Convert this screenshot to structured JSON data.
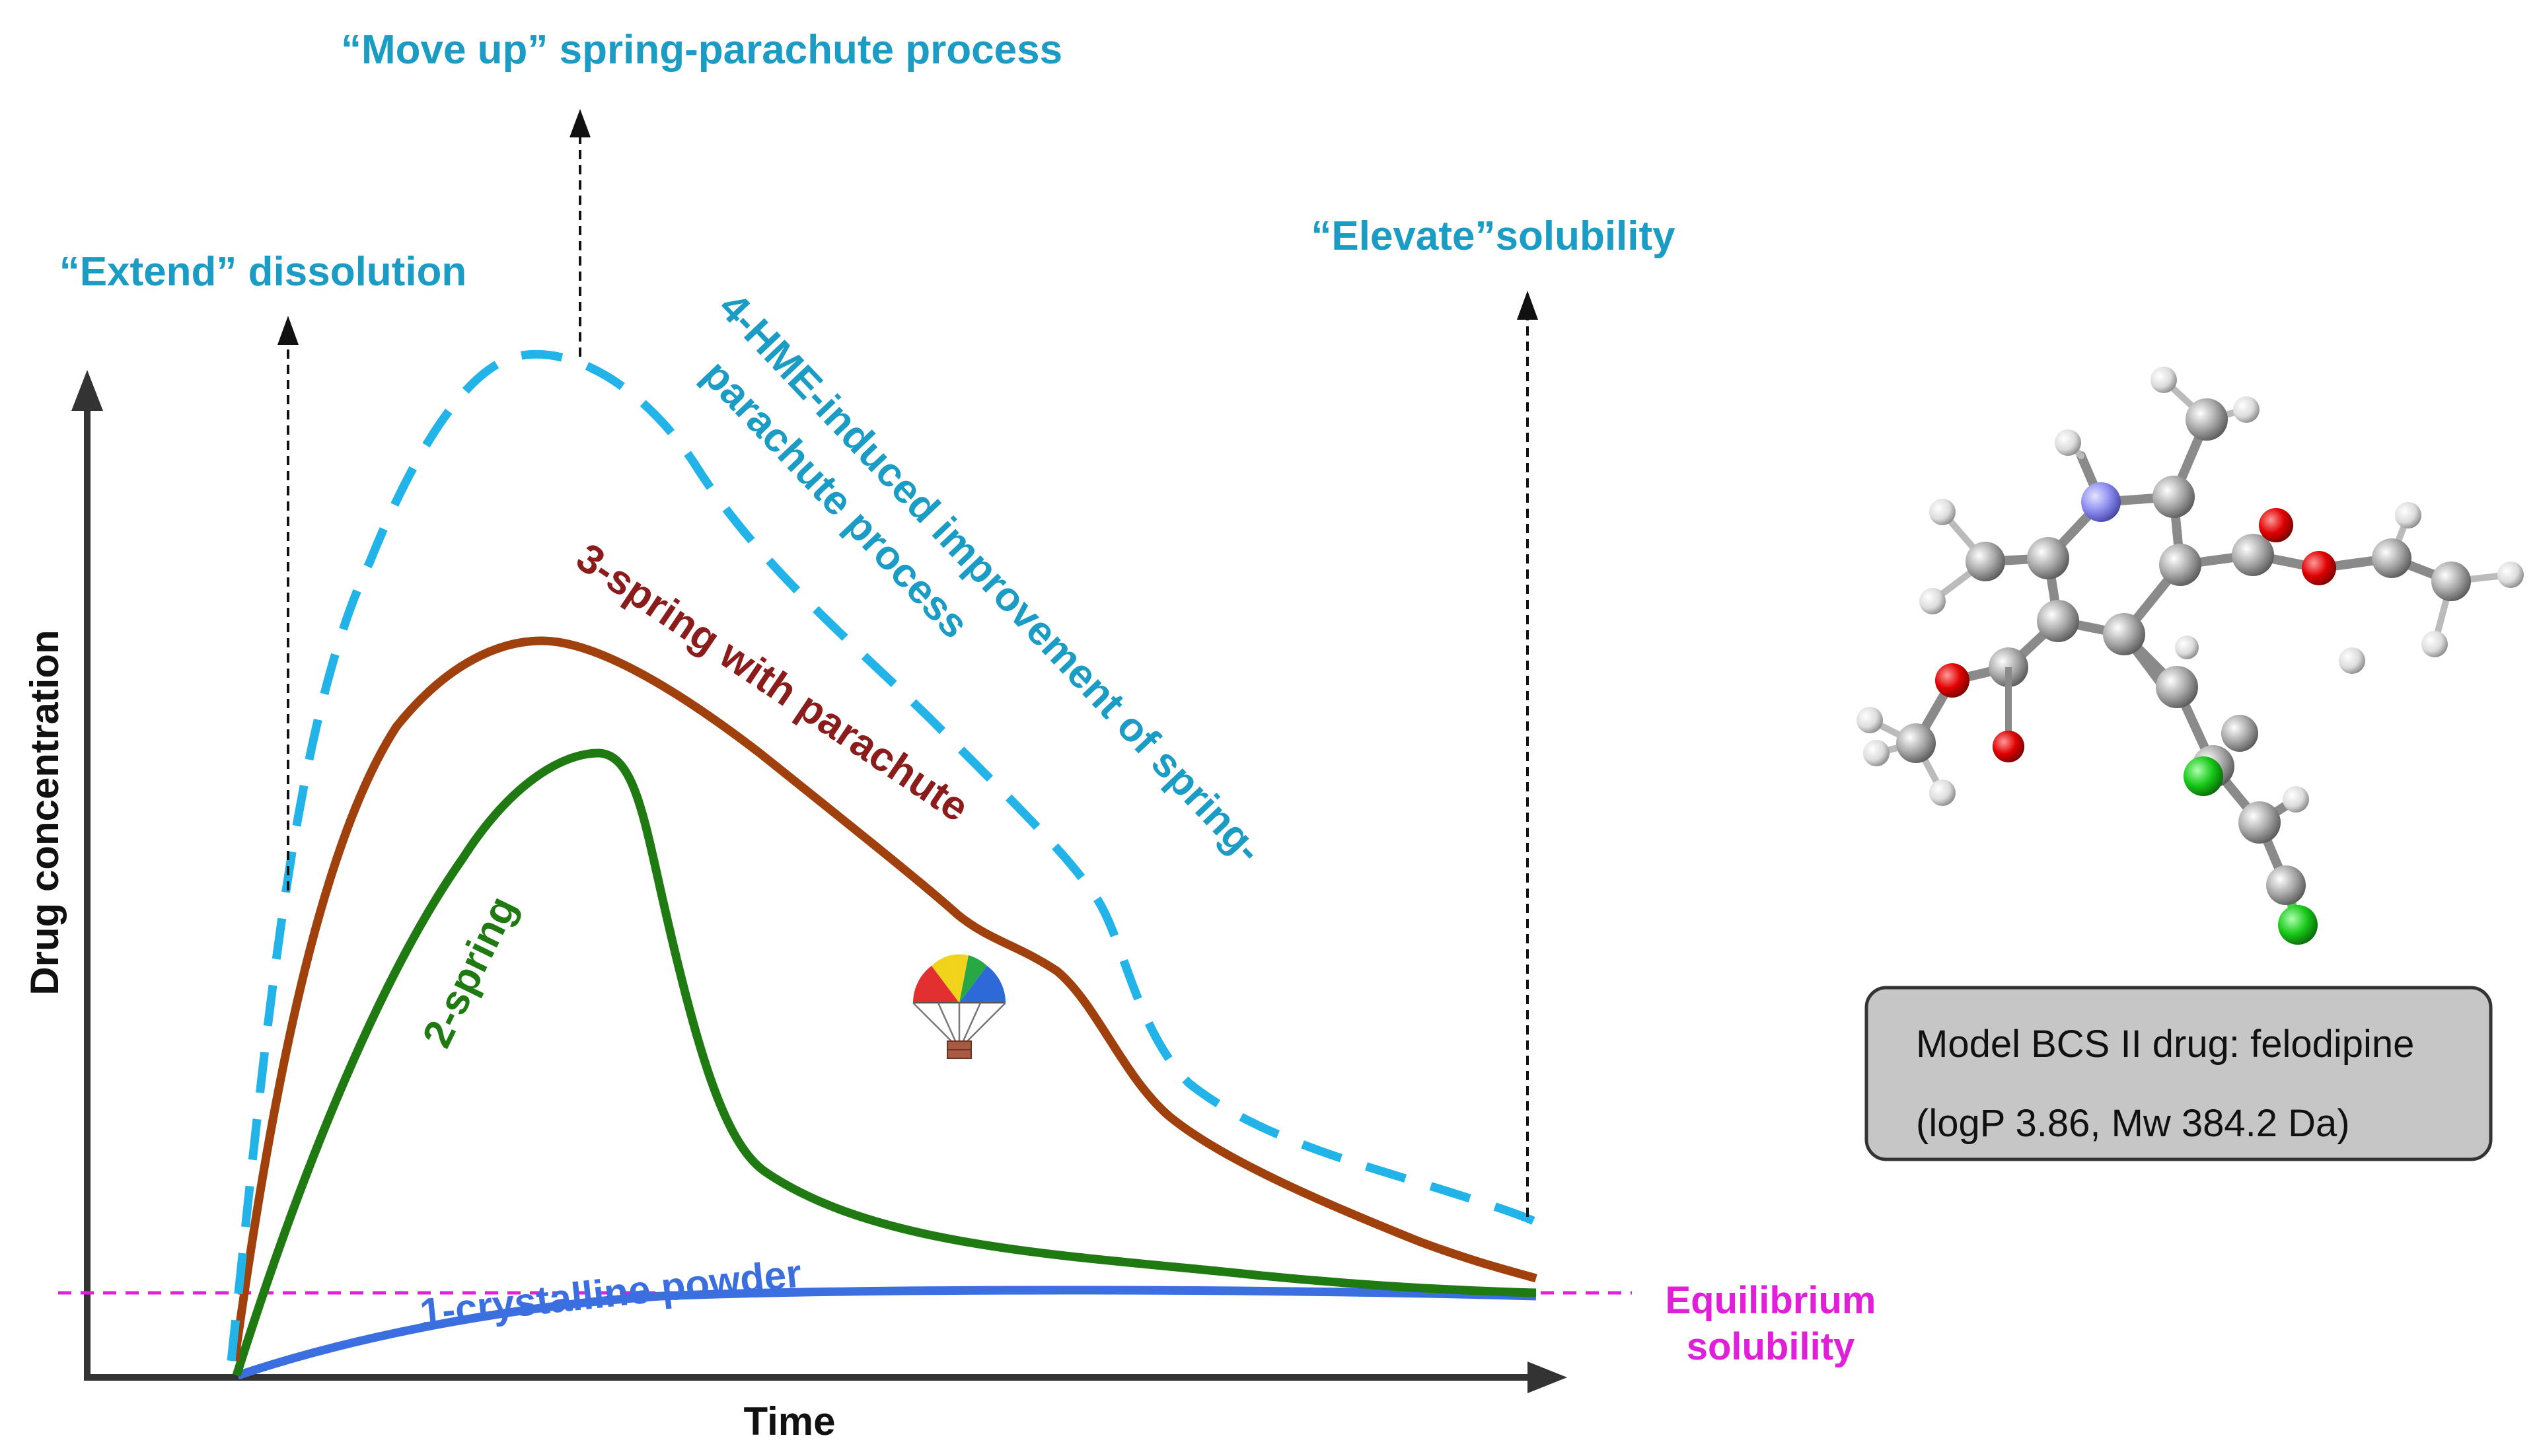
{
  "axes": {
    "y_label": "Drug concentration",
    "x_label": "Time"
  },
  "annotations": {
    "move_up": "“Move up” spring-parachute process",
    "extend": "“Extend” dissolution",
    "elevate": "“Elevate”solubility",
    "hme_line1": "4-HME-induced improvement of spring-",
    "hme_line2": "parachute process"
  },
  "curves": {
    "crystalline": {
      "label": "1-crystalline powder",
      "color": "#3b6fe0"
    },
    "spring": {
      "label": "2-spring",
      "color": "#1f7a12"
    },
    "spring_parachute": {
      "label": "3-spring with parachute",
      "color": "#a0400d",
      "label_color": "#8a1c1c"
    },
    "hme": {
      "color": "#22b4e8"
    }
  },
  "equilibrium": {
    "line1": "Equilibrium",
    "line2": "solubility",
    "color": "#e020d8"
  },
  "drug_box": {
    "line1": "Model BCS II drug: felodipine",
    "line2": "(logP 3.86, Mw 384.2 Da)"
  },
  "icons": {
    "parachute": "parachute-icon",
    "molecule": "felodipine-molecule-model"
  }
}
